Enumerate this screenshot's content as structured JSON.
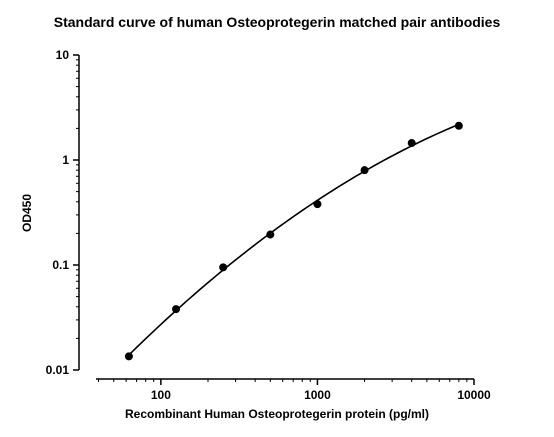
{
  "chart_data": {
    "type": "scatter",
    "title": "Standard curve of human Osteoprotegerin matched pair antibodies",
    "xlabel": "Recombinant Human Osteoprotegerin protein (pg/ml)",
    "ylabel": "OD450",
    "x_scale": "log",
    "y_scale": "log",
    "xlim": [
      30,
      10000
    ],
    "ylim": [
      0.01,
      10
    ],
    "x_ticks": [
      {
        "value": 100,
        "label": "100"
      },
      {
        "value": 1000,
        "label": "1000"
      },
      {
        "value": 10000,
        "label": "10000"
      }
    ],
    "y_ticks": [
      {
        "value": 0.01,
        "label": "0.01"
      },
      {
        "value": 0.1,
        "label": "0.1"
      },
      {
        "value": 1,
        "label": "1"
      },
      {
        "value": 10,
        "label": "10"
      }
    ],
    "grid": false,
    "series": [
      {
        "x": [
          62.5,
          125,
          250,
          500,
          1000,
          2000,
          4000,
          8000
        ],
        "y": [
          0.0135,
          0.038,
          0.095,
          0.195,
          0.38,
          0.8,
          1.45,
          2.12
        ],
        "marker": "circle",
        "fit_line": true,
        "color": "#000000"
      }
    ]
  }
}
